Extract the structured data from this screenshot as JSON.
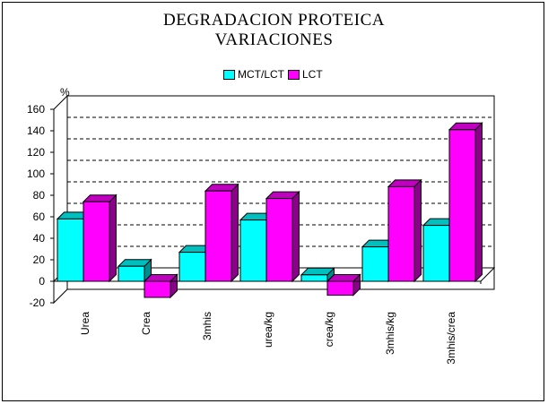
{
  "chart_data": {
    "type": "bar",
    "title_lines": [
      "DEGRADACION PROTEICA",
      "VARIACIONES"
    ],
    "ylabel": "%",
    "xlabel": "",
    "categories": [
      "Urea",
      "Crea",
      "3mhis",
      "urea/kg",
      "crea/kg",
      "3mhis/kg",
      "3mhis/crea"
    ],
    "series": [
      {
        "name": "MCT/LCT",
        "values": [
          58,
          14,
          27,
          57,
          6,
          32,
          52
        ],
        "color": "#00FFFF",
        "top_color": "#00BFBF",
        "side_color": "#008C8C"
      },
      {
        "name": "LCT",
        "values": [
          74,
          -15,
          84,
          77,
          -13,
          88,
          141
        ],
        "color": "#FF00FF",
        "top_color": "#BF00BF",
        "side_color": "#8C008C"
      }
    ],
    "ylim": [
      -20,
      160
    ],
    "yticks": [
      -20,
      0,
      20,
      40,
      60,
      80,
      100,
      120,
      140,
      160
    ],
    "grid": "dashed-horizontal",
    "legend_position": "top-center"
  }
}
